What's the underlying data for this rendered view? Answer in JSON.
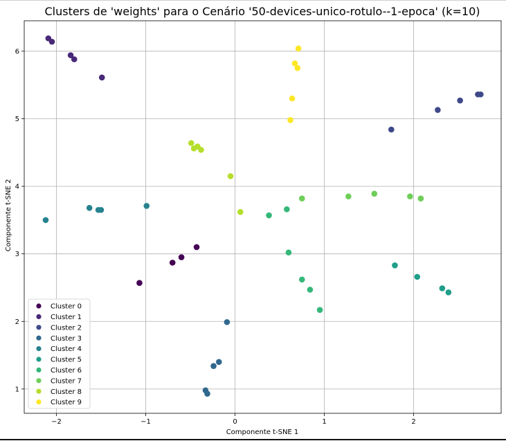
{
  "chart_data": {
    "type": "scatter",
    "title": "Clusters de 'weights' para o Cenário '50-devices-unico-rotulo--1-epoca' (k=10)",
    "xlabel": "Componente t-SNE 1",
    "ylabel": "Componente t-SNE 2",
    "xlim": [
      -2.36,
      2.98
    ],
    "ylim": [
      0.64,
      6.45
    ],
    "xticks": [
      -2,
      -1,
      0,
      1,
      2
    ],
    "xtick_labels": [
      "−2",
      "−1",
      "0",
      "1",
      "2"
    ],
    "yticks": [
      1,
      2,
      3,
      4,
      5,
      6
    ],
    "ytick_labels": [
      "1",
      "2",
      "3",
      "4",
      "5",
      "6"
    ],
    "grid": true,
    "legend_position": "lower-left",
    "series": [
      {
        "name": "Cluster 0",
        "color": "#440154",
        "points": [
          [
            -1.07,
            2.57
          ],
          [
            -0.7,
            2.87
          ],
          [
            -0.6,
            2.95
          ],
          [
            -0.43,
            3.1
          ]
        ]
      },
      {
        "name": "Cluster 1",
        "color": "#482878",
        "points": [
          [
            -2.09,
            6.19
          ],
          [
            -2.05,
            6.14
          ],
          [
            -1.84,
            5.94
          ],
          [
            -1.8,
            5.88
          ],
          [
            -1.49,
            5.61
          ]
        ]
      },
      {
        "name": "Cluster 2",
        "color": "#3e4989",
        "points": [
          [
            1.75,
            4.84
          ],
          [
            2.27,
            5.13
          ],
          [
            2.52,
            5.27
          ],
          [
            2.72,
            5.36
          ],
          [
            2.75,
            5.36
          ]
        ]
      },
      {
        "name": "Cluster 3",
        "color": "#31688e",
        "points": [
          [
            -0.09,
            1.99
          ],
          [
            -0.18,
            1.4
          ],
          [
            -0.24,
            1.34
          ],
          [
            -0.33,
            0.98
          ],
          [
            -0.31,
            0.93
          ]
        ]
      },
      {
        "name": "Cluster 4",
        "color": "#26828e",
        "points": [
          [
            -2.12,
            3.5
          ],
          [
            -1.63,
            3.68
          ],
          [
            -1.53,
            3.65
          ],
          [
            -1.5,
            3.65
          ],
          [
            -0.99,
            3.71
          ]
        ]
      },
      {
        "name": "Cluster 5",
        "color": "#1f9e89",
        "points": [
          [
            1.79,
            2.83
          ],
          [
            2.04,
            2.66
          ],
          [
            2.32,
            2.49
          ],
          [
            2.39,
            2.43
          ]
        ]
      },
      {
        "name": "Cluster 6",
        "color": "#35b779",
        "points": [
          [
            0.38,
            3.57
          ],
          [
            0.58,
            3.66
          ],
          [
            0.6,
            3.02
          ],
          [
            0.75,
            2.62
          ],
          [
            0.84,
            2.47
          ],
          [
            0.95,
            2.17
          ]
        ]
      },
      {
        "name": "Cluster 7",
        "color": "#6ece58",
        "points": [
          [
            0.75,
            3.82
          ],
          [
            1.27,
            3.85
          ],
          [
            1.56,
            3.89
          ],
          [
            1.96,
            3.85
          ],
          [
            2.08,
            3.82
          ]
        ]
      },
      {
        "name": "Cluster 8",
        "color": "#b5de2b",
        "points": [
          [
            -0.49,
            4.64
          ],
          [
            -0.46,
            4.56
          ],
          [
            -0.42,
            4.59
          ],
          [
            -0.38,
            4.54
          ],
          [
            -0.05,
            4.15
          ],
          [
            0.06,
            3.62
          ]
        ]
      },
      {
        "name": "Cluster 9",
        "color": "#fde725",
        "points": [
          [
            0.71,
            6.04
          ],
          [
            0.67,
            5.82
          ],
          [
            0.7,
            5.75
          ],
          [
            0.64,
            5.3
          ],
          [
            0.62,
            4.98
          ]
        ]
      }
    ]
  }
}
